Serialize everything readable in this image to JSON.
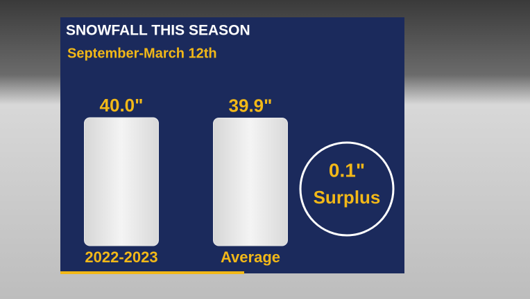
{
  "chart_data": {
    "type": "bar",
    "title": "SNOWFALL THIS SEASON",
    "subtitle": "September-March 12th",
    "categories": [
      "2022-2023",
      "Average"
    ],
    "values": [
      40.0,
      39.9
    ],
    "value_labels": [
      "40.0\"",
      "39.9\""
    ],
    "color": "#e9e9e9",
    "annotations": [
      "0.1\"",
      "Surplus"
    ]
  }
}
